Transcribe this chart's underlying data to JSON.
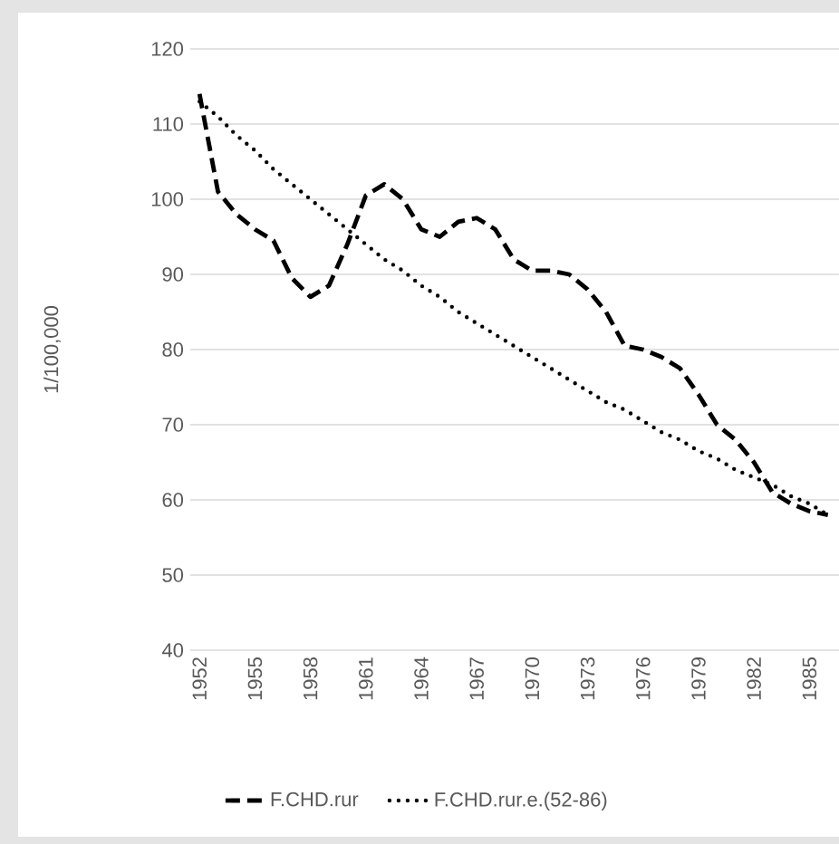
{
  "chart_data": {
    "type": "line",
    "ylabel": "1/100,000",
    "categories": [
      "1952",
      null,
      null,
      "1955",
      null,
      null,
      "1958",
      null,
      null,
      "1961",
      null,
      null,
      "1964",
      null,
      null,
      "1967",
      null,
      null,
      "1970",
      null,
      null,
      "1973",
      null,
      null,
      "1976",
      null,
      null,
      "1979",
      null,
      null,
      "1982",
      null,
      null,
      "1985",
      null
    ],
    "series": [
      {
        "name": "F.CHD.rur",
        "color": "#000000",
        "line_style": "dashed",
        "values": [
          114,
          101,
          98,
          96,
          94.5,
          89.5,
          87,
          88.5,
          94,
          100.5,
          102,
          100,
          96,
          95,
          97,
          97.5,
          96,
          92,
          90.5,
          90.5,
          90,
          88,
          85,
          80.5,
          80,
          79,
          77.5,
          74,
          70,
          68,
          65,
          61,
          59.5,
          58.5,
          58
        ]
      },
      {
        "name": "F.CHD.rur.e.(52-86)",
        "color": "#000000",
        "line_style": "dotted",
        "values": [
          113,
          111,
          108.5,
          106.5,
          104,
          102,
          100,
          98,
          96,
          94,
          92,
          90.5,
          88.5,
          87,
          85,
          83.5,
          82,
          80.5,
          79,
          77.5,
          76,
          74.5,
          73,
          72,
          70.5,
          69,
          68,
          66.5,
          65.5,
          64,
          63,
          62,
          60.5,
          59.5,
          58
        ]
      }
    ],
    "ylim": [
      40,
      120
    ],
    "yticks": [
      40,
      50,
      60,
      70,
      80,
      90,
      100,
      110,
      120
    ],
    "grid": "y",
    "legend": "bottom",
    "marker": "none"
  }
}
